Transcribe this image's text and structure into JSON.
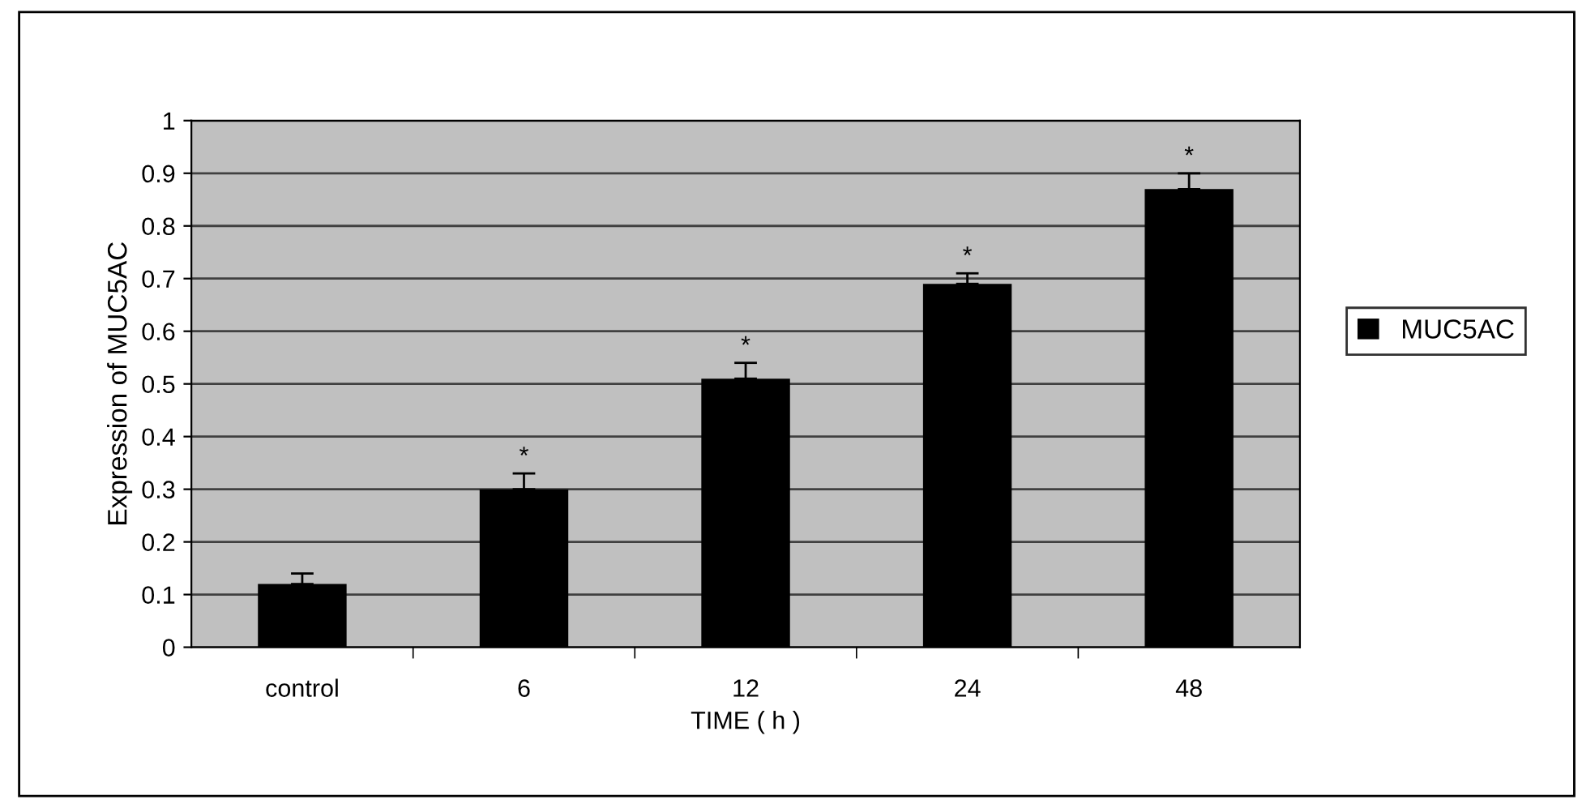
{
  "chart_data": {
    "type": "bar",
    "xlabel": "TIME ( h )",
    "ylabel": "Expression of MUC5AC",
    "categories": [
      "control",
      "6",
      "12",
      "24",
      "48"
    ],
    "series": [
      {
        "name": "MUC5AC",
        "color": "#000000",
        "values": [
          0.12,
          0.3,
          0.51,
          0.69,
          0.87
        ],
        "errors": [
          [
            0.12,
            0.14
          ],
          [
            0.3,
            0.33
          ],
          [
            0.51,
            0.54
          ],
          [
            0.69,
            0.71
          ],
          [
            0.87,
            0.9
          ]
        ]
      }
    ],
    "annotations": [
      {
        "text": "*",
        "x": "6",
        "y": 0.33
      },
      {
        "text": "*",
        "x": "12",
        "y": 0.54
      },
      {
        "text": "*",
        "x": "24",
        "y": 0.71
      },
      {
        "text": "*",
        "x": "48",
        "y": 0.9
      }
    ],
    "ylim": [
      0,
      1
    ],
    "yticks": [
      0,
      0.1,
      0.2,
      0.3,
      0.4,
      0.5,
      0.6,
      0.7,
      0.8,
      0.9,
      1
    ],
    "grid": "y",
    "legend": "right"
  }
}
